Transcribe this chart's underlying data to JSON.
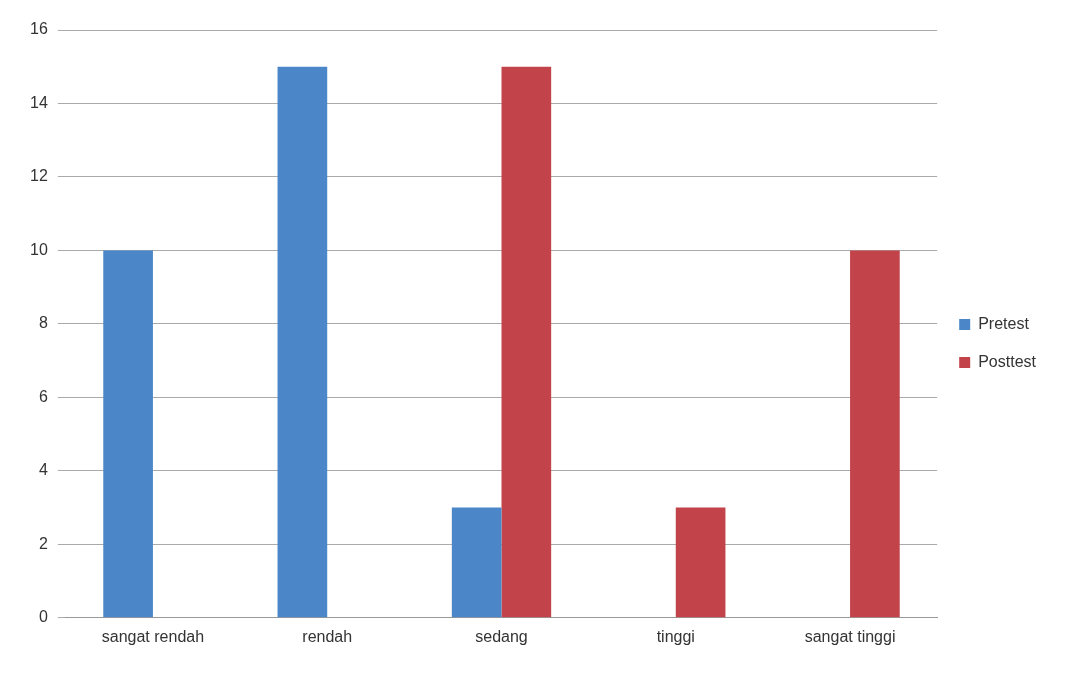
{
  "chart_data": {
    "type": "bar",
    "categories": [
      "sangat rendah",
      "rendah",
      "sedang",
      "tinggi",
      "sangat tinggi"
    ],
    "series": [
      {
        "name": "Pretest",
        "color": "#4a86c8",
        "values": [
          10,
          15,
          3,
          0,
          0
        ]
      },
      {
        "name": "Posttest",
        "color": "#c3434b",
        "values": [
          0,
          0,
          15,
          3,
          10
        ]
      }
    ],
    "ylim": [
      0,
      16
    ],
    "yticks": [
      0,
      2,
      4,
      6,
      8,
      10,
      12,
      14,
      16
    ],
    "grid": "y",
    "legend": "right"
  }
}
